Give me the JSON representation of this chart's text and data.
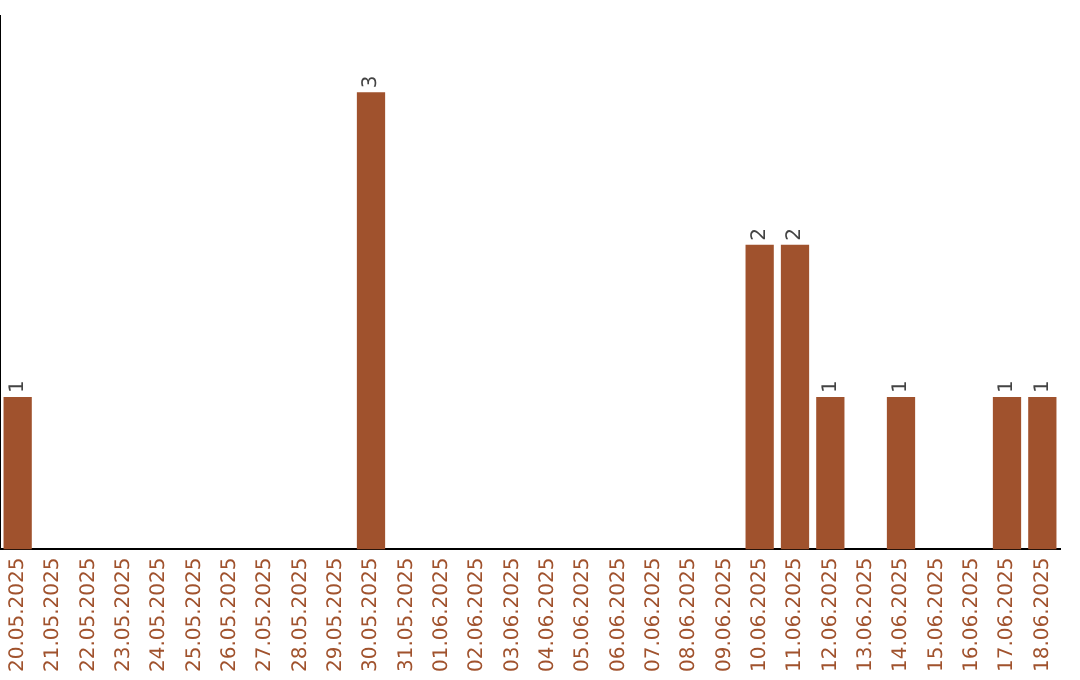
{
  "chart_data": {
    "type": "bar",
    "categories": [
      "20.05.2025",
      "21.05.2025",
      "22.05.2025",
      "23.05.2025",
      "24.05.2025",
      "25.05.2025",
      "26.05.2025",
      "27.05.2025",
      "28.05.2025",
      "29.05.2025",
      "30.05.2025",
      "31.05.2025",
      "01.06.2025",
      "02.06.2025",
      "03.06.2025",
      "04.06.2025",
      "05.06.2025",
      "06.06.2025",
      "07.06.2025",
      "08.06.2025",
      "09.06.2025",
      "10.06.2025",
      "11.06.2025",
      "12.06.2025",
      "13.06.2025",
      "14.06.2025",
      "15.06.2025",
      "16.06.2025",
      "17.06.2025",
      "18.06.2025"
    ],
    "values": [
      1,
      0,
      0,
      0,
      0,
      0,
      0,
      0,
      0,
      0,
      3,
      0,
      0,
      0,
      0,
      0,
      0,
      0,
      0,
      0,
      0,
      2,
      2,
      1,
      0,
      1,
      0,
      0,
      1,
      1
    ],
    "value_labels": [
      "1",
      null,
      null,
      null,
      null,
      null,
      null,
      null,
      null,
      null,
      "3",
      null,
      null,
      null,
      null,
      null,
      null,
      null,
      null,
      null,
      null,
      "2",
      "2",
      "1",
      null,
      "1",
      null,
      null,
      "1",
      "1"
    ],
    "color": "#a0522d",
    "grid": false,
    "legend": false,
    "tick_labels": "x"
  }
}
